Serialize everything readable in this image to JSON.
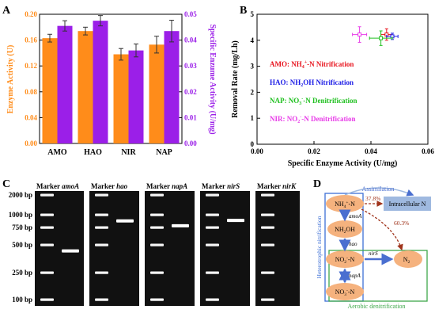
{
  "colors": {
    "orange": "#FF8C1A",
    "purple": "#9B1FE8",
    "red": "#E8141E",
    "blue": "#1A1AE6",
    "green": "#20C020",
    "magenta": "#E83CE8",
    "node_fill": "#F5B27E",
    "intra_fill": "#9FB9E0",
    "arrow_blue": "#4A6FD0",
    "arrow_brown": "#A0341C",
    "box_blue": "#3D6FD6",
    "box_green": "#3EA84A"
  },
  "panels": {
    "a": "A",
    "b": "B",
    "c": "C",
    "d": "D"
  },
  "chart_data": [
    {
      "type": "bar",
      "panel": "A",
      "categories": [
        "AMO",
        "HAO",
        "NIR",
        "NAP"
      ],
      "ylabel": "Enzyme Activity (U)",
      "y2label": "Specific Enzume Activity (U/mg)",
      "ylim": [
        0,
        0.2
      ],
      "y2lim": [
        0,
        0.05
      ],
      "yticks": [
        "0.00",
        "0.04",
        "0.08",
        "0.12",
        "0.16",
        "0.20"
      ],
      "y2ticks": [
        "0.00",
        "0.01",
        "0.02",
        "0.03",
        "0.04",
        "0.05"
      ],
      "series": [
        {
          "values": [
            0.163,
            0.174,
            0.138,
            0.153
          ],
          "errors": [
            0.006,
            0.006,
            0.009,
            0.013
          ],
          "axis": "left",
          "color_key": "orange"
        },
        {
          "values": [
            0.0455,
            0.0475,
            0.036,
            0.0435
          ],
          "errors": [
            0.002,
            0.002,
            0.0025,
            0.0042
          ],
          "axis": "right",
          "color_key": "purple"
        }
      ]
    },
    {
      "type": "scatter",
      "panel": "B",
      "xlabel": "Specific Enzyme Activity (U/mg)",
      "ylabel": "Removal Rate (mg/Lh)",
      "xlim": [
        0,
        0.06
      ],
      "ylim": [
        0,
        5
      ],
      "xticks": [
        "0.00",
        "0.02",
        "0.04",
        "0.06"
      ],
      "yticks": [
        "0",
        "1",
        "2",
        "3",
        "4",
        "5"
      ],
      "points": [
        {
          "x": 0.0455,
          "y": 4.22,
          "xerr": 0.002,
          "yerr": 0.22,
          "color_key": "red"
        },
        {
          "x": 0.0475,
          "y": 4.15,
          "xerr": 0.002,
          "yerr": 0.12,
          "color_key": "blue"
        },
        {
          "x": 0.0435,
          "y": 4.08,
          "xerr": 0.004,
          "yerr": 0.28,
          "color_key": "green"
        },
        {
          "x": 0.036,
          "y": 4.22,
          "xerr": 0.0025,
          "yerr": 0.3,
          "color_key": "magenta"
        }
      ],
      "legend": [
        {
          "name": "AMO:",
          "desc": "NH",
          "sub": "4",
          "sup": "+",
          "tail": "-N Nitrification",
          "color_key": "red"
        },
        {
          "name": "HAO:",
          "desc": "NH",
          "sub": "2",
          "sup": "",
          "tail": "OH Nitrification",
          "color_key": "blue"
        },
        {
          "name": "NAP:",
          "desc": "NO",
          "sub": "3",
          "sup": "-",
          "tail": "-N Denitrification",
          "color_key": "green"
        },
        {
          "name": "NIR:",
          "desc": "NO",
          "sub": "2",
          "sup": "-",
          "tail": "-N Denitrification",
          "color_key": "magenta"
        }
      ]
    }
  ],
  "gel": {
    "ladder": [
      "2000 bp",
      "1000 bp",
      "750 bp",
      "500 bp",
      "250 bp",
      "100 bp"
    ],
    "lanes": [
      {
        "marker": "Marker",
        "gene": "amoA",
        "band_bp": 430
      },
      {
        "marker": "Marker",
        "gene": "hao",
        "band_bp": 870
      },
      {
        "marker": "Marker",
        "gene": "napA",
        "band_bp": 780
      },
      {
        "marker": "Marker",
        "gene": "nirS",
        "band_bp": 880
      },
      {
        "marker": "Marker",
        "gene": "nirK",
        "band_bp": null
      }
    ]
  },
  "diagram": {
    "assimilation": "Assimilation",
    "nh4": {
      "base": "NH",
      "sub": "4",
      "sup": "+",
      "tail": "-N"
    },
    "nh2oh": {
      "base": "NH",
      "sub": "2",
      "tail": "OH"
    },
    "no2": {
      "base": "NO",
      "sub": "2",
      "sup": "-",
      "tail": "-N"
    },
    "no3": {
      "base": "NO",
      "sub": "3",
      "sup": "-",
      "tail": "-N"
    },
    "n2": {
      "base": "N",
      "sub": "2"
    },
    "intracellular": "Intracellular N",
    "pct_top": "37.8%",
    "pct_diag": "60.3%",
    "enz_amo": "amoA",
    "enz_hao": "hao",
    "enz_nap": "napA",
    "enz_nir": "nirS",
    "hetero": "Heterotrophic nitrification",
    "aerobic": "Aerobic denitrification"
  }
}
